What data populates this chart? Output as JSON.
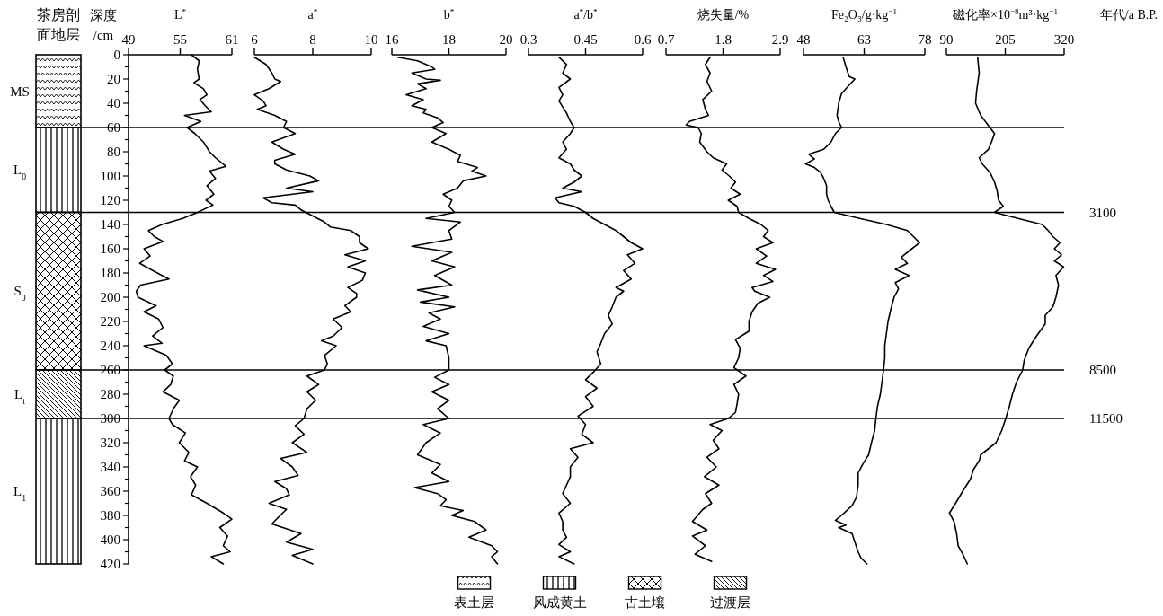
{
  "chart_data": [
    {
      "type": "line",
      "orientation": "horizontal",
      "title": "茶房剖面地层",
      "xlabel": "L$^{*}$",
      "annotations": [
        "MS",
        "L$_{0}$",
        "S$_{0}$",
        "L$_{t}$",
        "L$_{1}$"
      ],
      "ylabel": "深度 /cm",
      "color": "#000000",
      "xlim": [
        49,
        61
      ],
      "xticks": [
        49,
        55,
        61
      ],
      "ylim": [
        420,
        0
      ],
      "yticks": [
        0,
        {
          "value": 10,
          "label": null
        },
        20,
        {
          "value": 30,
          "label": null
        },
        40,
        {
          "value": 50,
          "label": null
        },
        60,
        {
          "value": 70,
          "label": null
        },
        80,
        {
          "value": 90,
          "label": null
        },
        100,
        {
          "value": 110,
          "label": null
        },
        120,
        {
          "value": 130,
          "label": null
        },
        140,
        {
          "value": 150,
          "label": null
        },
        160,
        {
          "value": 170,
          "label": null
        },
        180,
        {
          "value": 190,
          "label": null
        },
        200,
        {
          "value": 210,
          "label": null
        },
        220,
        {
          "value": 230,
          "label": null
        },
        240,
        {
          "value": 250,
          "label": null
        },
        260,
        {
          "value": 270,
          "label": null
        },
        280,
        {
          "value": 290,
          "label": null
        },
        300,
        {
          "value": 310,
          "label": null
        },
        320,
        {
          "value": 330,
          "label": null
        },
        340,
        {
          "value": 350,
          "label": null
        },
        360,
        {
          "value": 370,
          "label": null
        },
        380,
        {
          "value": 390,
          "label": null
        },
        400,
        {
          "value": 410,
          "label": null
        },
        420
      ],
      "x": [
        0,
        5,
        12,
        20,
        23,
        28,
        33,
        37,
        42,
        47,
        50,
        55,
        60,
        65,
        72,
        80,
        85,
        92,
        96,
        102,
        108,
        115,
        120,
        124,
        130,
        135,
        140,
        145,
        150,
        154,
        160,
        166,
        172,
        178,
        185,
        190,
        195,
        200,
        207,
        212,
        218,
        225,
        232,
        238,
        240,
        248,
        255,
        260,
        265,
        272,
        278,
        285,
        292,
        300,
        305,
        312,
        320,
        328,
        335,
        340,
        348,
        355,
        363,
        370,
        378,
        383,
        390,
        397,
        405,
        410,
        414,
        420
      ],
      "values": [
        56.3,
        57.2,
        57.0,
        57.2,
        56.6,
        57.7,
        58.1,
        57.3,
        57.9,
        58.6,
        55.5,
        57.4,
        55.8,
        56.7,
        57.7,
        58.4,
        59.1,
        60.3,
        58.4,
        59.1,
        58.1,
        58.9,
        58.0,
        58.8,
        57.0,
        55.3,
        52.9,
        51.3,
        52.0,
        53.0,
        50.8,
        51.5,
        50.3,
        51.8,
        53.7,
        50.4,
        49.9,
        50.1,
        52.2,
        50.8,
        52.5,
        53.0,
        51.8,
        52.9,
        50.8,
        53.4,
        54.1,
        53.2,
        54.2,
        53.9,
        53.0,
        54.9,
        54.2,
        53.7,
        54.1,
        55.6,
        54.9,
        56.0,
        55.5,
        57.0,
        56.2,
        56.8,
        56.3,
        58.1,
        60.0,
        61.0,
        59.6,
        60.5,
        60.0,
        60.8,
        58.6,
        60.0
      ]
    },
    {
      "type": "line",
      "orientation": "horizontal",
      "xlabel": "a$^{*}$",
      "color": "#000000",
      "xlim": [
        6,
        10
      ],
      "xticks": [
        6,
        8,
        10
      ],
      "ylim": [
        420,
        0
      ],
      "tick_labels": "x",
      "x": [
        2,
        8,
        15,
        20,
        22,
        28,
        33,
        38,
        42,
        45,
        50,
        55,
        60,
        65,
        72,
        78,
        82,
        87,
        90,
        95,
        100,
        104,
        110,
        113,
        118,
        122,
        124,
        128,
        133,
        138,
        142,
        145,
        150,
        155,
        160,
        165,
        170,
        175,
        180,
        186,
        192,
        197,
        200,
        207,
        212,
        218,
        225,
        232,
        236,
        240,
        248,
        255,
        260,
        265,
        272,
        278,
        285,
        292,
        300,
        306,
        313,
        320,
        328,
        333,
        340,
        347,
        352,
        358,
        363,
        370,
        375,
        382,
        387,
        395,
        402,
        408,
        413,
        420
      ],
      "values": [
        6.0,
        6.4,
        6.6,
        6.7,
        6.9,
        6.5,
        6.0,
        6.3,
        6.4,
        6.1,
        6.7,
        7.1,
        7.0,
        7.4,
        6.6,
        7.0,
        7.4,
        6.7,
        6.7,
        7.1,
        7.9,
        8.2,
        7.1,
        8.0,
        6.3,
        6.6,
        7.4,
        7.6,
        8.0,
        8.4,
        8.6,
        9.3,
        9.6,
        9.6,
        9.9,
        9.1,
        9.8,
        9.2,
        9.8,
        9.7,
        9.2,
        9.5,
        9.5,
        9.1,
        9.3,
        8.7,
        9.0,
        8.7,
        8.3,
        8.8,
        8.4,
        8.5,
        8.4,
        7.8,
        8.2,
        7.8,
        8.1,
        7.8,
        7.7,
        7.4,
        7.7,
        7.3,
        7.8,
        6.9,
        7.3,
        7.5,
        6.7,
        7.1,
        7.2,
        6.5,
        7.1,
        6.8,
        6.6,
        7.6,
        7.1,
        8.0,
        7.3,
        8.0
      ]
    },
    {
      "type": "line",
      "orientation": "horizontal",
      "xlabel": "b$^{*}$",
      "color": "#000000",
      "xlim": [
        16,
        20
      ],
      "xticks": [
        16,
        18,
        20
      ],
      "ylim": [
        420,
        0
      ],
      "tick_labels": "x",
      "x": [
        2,
        5,
        10,
        12,
        15,
        20,
        21,
        24,
        28,
        33,
        37,
        42,
        45,
        48,
        52,
        56,
        60,
        65,
        72,
        78,
        83,
        88,
        93,
        96,
        100,
        104,
        110,
        115,
        120,
        125,
        130,
        135,
        138,
        145,
        152,
        158,
        163,
        170,
        175,
        182,
        190,
        194,
        200,
        204,
        208,
        213,
        218,
        224,
        230,
        236,
        240,
        250,
        260,
        266,
        272,
        278,
        285,
        292,
        300,
        305,
        312,
        320,
        330,
        338,
        345,
        352,
        357,
        362,
        367,
        372,
        376,
        380,
        385,
        392,
        398,
        405,
        410,
        414,
        420
      ],
      "values": [
        16.2,
        16.9,
        17.4,
        17.5,
        16.7,
        17.2,
        17.7,
        16.9,
        17.2,
        16.5,
        17.1,
        16.7,
        17.2,
        17.1,
        17.6,
        17.8,
        17.4,
        17.9,
        17.4,
        18.0,
        18.4,
        18.3,
        19.0,
        18.8,
        19.3,
        18.5,
        18.3,
        17.8,
        18.1,
        18.0,
        18.2,
        17.2,
        18.4,
        18.0,
        18.1,
        16.7,
        18.1,
        17.4,
        18.2,
        17.5,
        18.1,
        16.9,
        18.0,
        17.0,
        18.2,
        17.3,
        17.7,
        17.1,
        18.0,
        17.2,
        17.9,
        18.0,
        18.0,
        17.5,
        18.0,
        17.4,
        18.0,
        17.6,
        18.0,
        17.1,
        17.7,
        17.2,
        16.9,
        17.7,
        17.4,
        18.0,
        16.8,
        17.6,
        17.9,
        17.7,
        18.5,
        18.1,
        18.9,
        19.3,
        18.7,
        19.5,
        19.7,
        19.5,
        19.7
      ]
    },
    {
      "type": "line",
      "orientation": "horizontal",
      "xlabel": "a$^{*}$/b$^{*}$",
      "color": "#000000",
      "xlim": [
        0.3,
        0.6
      ],
      "xticks": [
        0.3,
        0.45,
        0.6
      ],
      "ylim": [
        420,
        0
      ],
      "tick_labels": "x",
      "x": [
        2,
        8,
        15,
        20,
        27,
        33,
        38,
        43,
        48,
        55,
        60,
        65,
        72,
        78,
        85,
        90,
        95,
        100,
        105,
        110,
        113,
        118,
        122,
        125,
        130,
        135,
        140,
        145,
        150,
        155,
        160,
        165,
        172,
        178,
        185,
        192,
        195,
        200,
        208,
        215,
        222,
        230,
        238,
        245,
        255,
        262,
        268,
        275,
        282,
        290,
        298,
        305,
        313,
        320,
        325,
        332,
        340,
        348,
        355,
        362,
        370,
        378,
        385,
        392,
        398,
        404,
        410,
        414,
        420
      ],
      "values": [
        0.38,
        0.4,
        0.39,
        0.41,
        0.38,
        0.39,
        0.38,
        0.39,
        0.4,
        0.41,
        0.42,
        0.41,
        0.39,
        0.4,
        0.38,
        0.41,
        0.42,
        0.44,
        0.42,
        0.39,
        0.44,
        0.37,
        0.38,
        0.42,
        0.45,
        0.47,
        0.5,
        0.53,
        0.55,
        0.57,
        0.6,
        0.56,
        0.58,
        0.55,
        0.57,
        0.53,
        0.55,
        0.53,
        0.52,
        0.51,
        0.52,
        0.5,
        0.49,
        0.48,
        0.49,
        0.47,
        0.45,
        0.48,
        0.45,
        0.47,
        0.43,
        0.45,
        0.44,
        0.47,
        0.41,
        0.43,
        0.41,
        0.41,
        0.4,
        0.39,
        0.41,
        0.38,
        0.39,
        0.39,
        0.4,
        0.38,
        0.41,
        0.38,
        0.42
      ]
    },
    {
      "type": "line",
      "orientation": "horizontal",
      "xlabel": "烧失量/%",
      "color": "#000000",
      "xlim": [
        0.7,
        2.9
      ],
      "xticks": [
        0.7,
        1.8,
        2.9
      ],
      "ylim": [
        420,
        0
      ],
      "tick_labels": "x",
      "x": [
        2,
        8,
        15,
        22,
        30,
        37,
        45,
        50,
        55,
        58,
        60,
        65,
        72,
        80,
        85,
        90,
        95,
        100,
        105,
        110,
        115,
        120,
        125,
        130,
        135,
        140,
        145,
        150,
        155,
        160,
        166,
        172,
        177,
        182,
        187,
        192,
        195,
        200,
        205,
        212,
        220,
        228,
        235,
        242,
        250,
        258,
        265,
        272,
        280,
        288,
        295,
        300,
        305,
        310,
        318,
        325,
        332,
        340,
        348,
        355,
        362,
        370,
        375,
        385,
        392,
        397,
        405,
        412,
        418
      ],
      "values": [
        1.55,
        1.46,
        1.55,
        1.49,
        1.58,
        1.41,
        1.46,
        1.52,
        1.15,
        1.09,
        1.32,
        1.38,
        1.35,
        1.49,
        1.61,
        1.87,
        1.78,
        1.92,
        2.04,
        1.95,
        2.13,
        1.9,
        2.07,
        2.1,
        2.3,
        2.53,
        2.67,
        2.58,
        2.76,
        2.44,
        2.64,
        2.44,
        2.81,
        2.58,
        2.76,
        2.36,
        2.41,
        2.7,
        2.47,
        2.36,
        2.3,
        2.3,
        2.04,
        2.13,
        2.1,
        2.01,
        2.24,
        2.01,
        2.1,
        2.07,
        2.04,
        1.9,
        1.55,
        1.78,
        1.61,
        1.72,
        1.49,
        1.67,
        1.44,
        1.72,
        1.46,
        1.58,
        1.41,
        1.21,
        1.49,
        1.21,
        1.46,
        1.26,
        1.58
      ]
    },
    {
      "type": "line",
      "orientation": "horizontal",
      "xlabel": "Fe₂O₃/g·kg$^{−1}$",
      "color": "#000000",
      "xlim": [
        48,
        78
      ],
      "xticks": [
        48,
        63,
        78
      ],
      "ylim": [
        420,
        0
      ],
      "tick_labels": "x",
      "x": [
        2,
        10,
        18,
        20,
        25,
        32,
        40,
        50,
        55,
        60,
        65,
        72,
        78,
        82,
        86,
        90,
        93,
        97,
        102,
        108,
        115,
        120,
        125,
        130,
        135,
        140,
        145,
        150,
        155,
        160,
        167,
        172,
        177,
        182,
        188,
        193,
        200,
        210,
        220,
        230,
        240,
        250,
        260,
        270,
        280,
        290,
        300,
        310,
        320,
        330,
        338,
        345,
        355,
        365,
        372,
        380,
        384,
        388,
        390,
        395,
        402,
        410,
        415,
        420
      ],
      "values": [
        57.8,
        58.5,
        59.3,
        60.7,
        59.3,
        57.4,
        56.7,
        56.3,
        56.7,
        57.4,
        55.9,
        54.8,
        53.0,
        49.3,
        50.7,
        48.5,
        50.7,
        52.2,
        53.0,
        53.7,
        53.7,
        54.1,
        54.8,
        55.6,
        61.9,
        68.5,
        73.7,
        75.2,
        76.7,
        74.8,
        72.2,
        73.7,
        70.7,
        74.1,
        70.7,
        71.5,
        70.4,
        69.6,
        68.9,
        68.5,
        68.1,
        68.1,
        67.8,
        67.4,
        67.0,
        66.3,
        65.9,
        65.6,
        64.8,
        64.1,
        62.6,
        61.5,
        61.5,
        61.1,
        60.0,
        57.4,
        55.9,
        58.5,
        56.7,
        60.0,
        60.7,
        61.5,
        62.2,
        63.7
      ]
    },
    {
      "type": "line",
      "orientation": "horizontal",
      "xlabel": "磁化率×10$^{−8}$m³·kg$^{−1}$",
      "y2label": "年代/a B.P.",
      "color": "#000000",
      "xlim": [
        90,
        320
      ],
      "xticks": [
        90,
        205,
        320
      ],
      "ylim": [
        420,
        0
      ],
      "tick_labels": "x",
      "ref_lines": [
        {
          "axis": "y",
          "value": 60
        },
        {
          "axis": "y",
          "value": 130
        },
        {
          "axis": "y",
          "value": 260
        },
        {
          "axis": "y",
          "value": 300
        }
      ],
      "annotations": [
        "3100",
        "8500",
        "11500"
      ],
      "x": [
        2,
        15,
        30,
        40,
        50,
        55,
        60,
        65,
        72,
        78,
        85,
        90,
        97,
        105,
        112,
        120,
        125,
        130,
        135,
        140,
        145,
        150,
        155,
        160,
        165,
        170,
        175,
        182,
        190,
        200,
        208,
        215,
        222,
        232,
        242,
        252,
        260,
        270,
        280,
        290,
        300,
        310,
        320,
        330,
        335,
        342,
        350,
        360,
        370,
        378,
        385,
        395,
        405,
        412,
        420
      ],
      "values": [
        151,
        154,
        149,
        147,
        157,
        166,
        175,
        184,
        178,
        172,
        154,
        160,
        175,
        184,
        189,
        192,
        201,
        184,
        230,
        277,
        289,
        298,
        312,
        301,
        315,
        301,
        319,
        304,
        309,
        304,
        298,
        283,
        283,
        266,
        251,
        242,
        239,
        227,
        219,
        213,
        206,
        198,
        187,
        157,
        154,
        143,
        137,
        122,
        108,
        96,
        105,
        110,
        113,
        122,
        131
      ]
    },
    {
      "type": "other",
      "annotations": [
        "表土层",
        "风成黄土",
        "古土壤",
        "过渡层"
      ]
    }
  ]
}
